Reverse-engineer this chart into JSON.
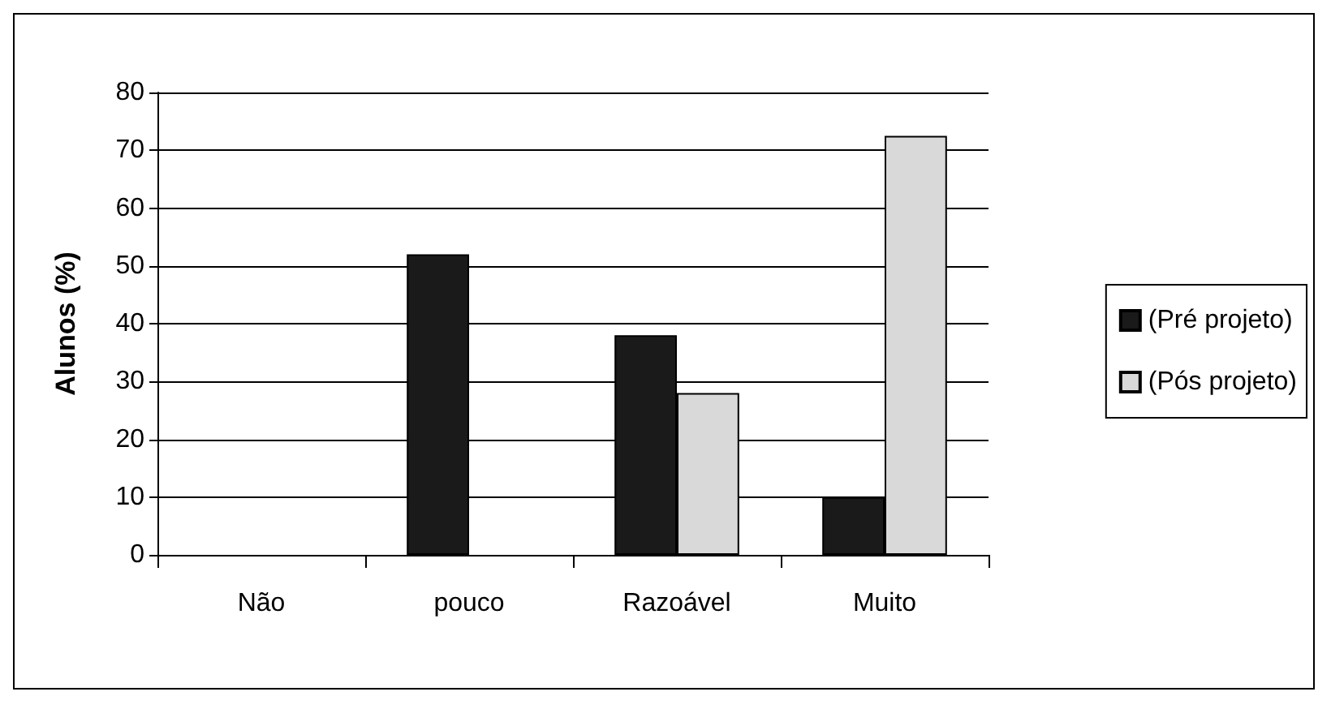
{
  "chart_data": {
    "type": "bar",
    "ylabel": "Alunos (%)",
    "categories": [
      "Não",
      "pouco",
      "Razoável",
      "Muito"
    ],
    "series": [
      {
        "name": "(Pré projeto)",
        "color": "#1a1a1a",
        "values": [
          0,
          52,
          38,
          10
        ]
      },
      {
        "name": "(Pós projeto)",
        "color": "#d9d9d9",
        "values": [
          0,
          0,
          28,
          72.5
        ]
      }
    ],
    "ylim": [
      0,
      80
    ],
    "yticks": [
      0,
      10,
      20,
      30,
      40,
      50,
      60,
      70,
      80
    ],
    "grid": "y",
    "legend": "right"
  }
}
